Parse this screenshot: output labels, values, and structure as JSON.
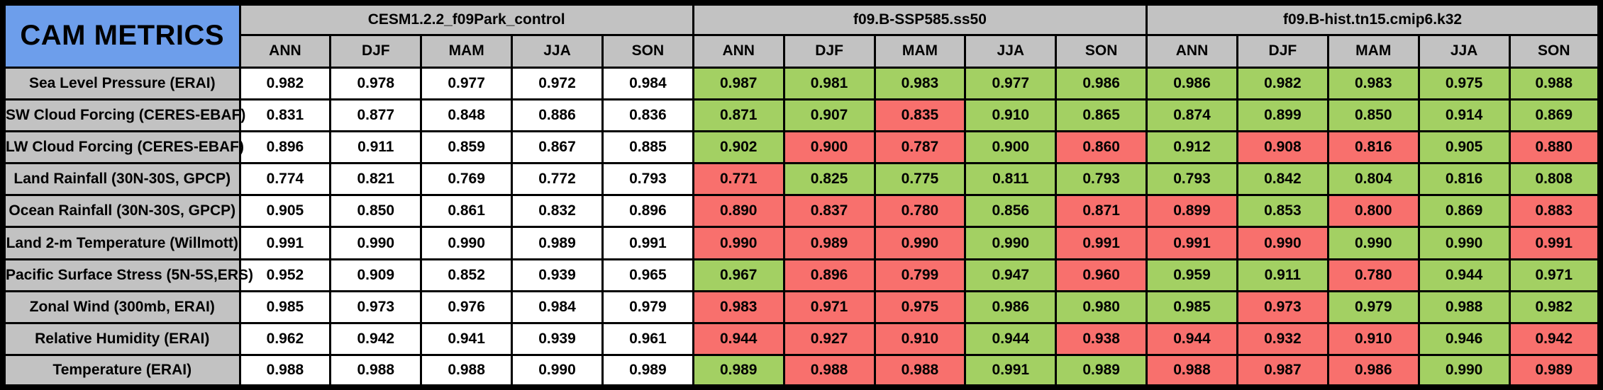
{
  "title": "CAM METRICS",
  "colors": {
    "title_background": "#6D9EEB",
    "header_background": "#C2C2C2",
    "cell_white": "#FFFFFF",
    "cell_green": "#A3D063",
    "cell_red": "#F8706D",
    "border": "#000000"
  },
  "chart_data": {
    "type": "table",
    "title": "CAM METRICS",
    "column_groups": [
      "CESM1.2.2_f09Park_control",
      "f09.B-SSP585.ss50",
      "f09.B-hist.tn15.cmip6.k32"
    ],
    "seasons": [
      "ANN",
      "DJF",
      "MAM",
      "JJA",
      "SON"
    ],
    "color_key": {
      "w": "white",
      "g": "green",
      "r": "red"
    },
    "rows": [
      {
        "label": "Sea Level Pressure (ERAI)",
        "groups": [
          {
            "values": [
              "0.982",
              "0.978",
              "0.977",
              "0.972",
              "0.984"
            ],
            "colors": [
              "w",
              "w",
              "w",
              "w",
              "w"
            ]
          },
          {
            "values": [
              "0.987",
              "0.981",
              "0.983",
              "0.977",
              "0.986"
            ],
            "colors": [
              "g",
              "g",
              "g",
              "g",
              "g"
            ]
          },
          {
            "values": [
              "0.986",
              "0.982",
              "0.983",
              "0.975",
              "0.988"
            ],
            "colors": [
              "g",
              "g",
              "g",
              "g",
              "g"
            ]
          }
        ]
      },
      {
        "label": "SW Cloud Forcing (CERES-EBAF)",
        "groups": [
          {
            "values": [
              "0.831",
              "0.877",
              "0.848",
              "0.886",
              "0.836"
            ],
            "colors": [
              "w",
              "w",
              "w",
              "w",
              "w"
            ]
          },
          {
            "values": [
              "0.871",
              "0.907",
              "0.835",
              "0.910",
              "0.865"
            ],
            "colors": [
              "g",
              "g",
              "r",
              "g",
              "g"
            ]
          },
          {
            "values": [
              "0.874",
              "0.899",
              "0.850",
              "0.914",
              "0.869"
            ],
            "colors": [
              "g",
              "g",
              "g",
              "g",
              "g"
            ]
          }
        ]
      },
      {
        "label": "LW Cloud Forcing (CERES-EBAF)",
        "groups": [
          {
            "values": [
              "0.896",
              "0.911",
              "0.859",
              "0.867",
              "0.885"
            ],
            "colors": [
              "w",
              "w",
              "w",
              "w",
              "w"
            ]
          },
          {
            "values": [
              "0.902",
              "0.900",
              "0.787",
              "0.900",
              "0.860"
            ],
            "colors": [
              "g",
              "r",
              "r",
              "g",
              "r"
            ]
          },
          {
            "values": [
              "0.912",
              "0.908",
              "0.816",
              "0.905",
              "0.880"
            ],
            "colors": [
              "g",
              "r",
              "r",
              "g",
              "r"
            ]
          }
        ]
      },
      {
        "label": "Land Rainfall (30N-30S, GPCP)",
        "groups": [
          {
            "values": [
              "0.774",
              "0.821",
              "0.769",
              "0.772",
              "0.793"
            ],
            "colors": [
              "w",
              "w",
              "w",
              "w",
              "w"
            ]
          },
          {
            "values": [
              "0.771",
              "0.825",
              "0.775",
              "0.811",
              "0.793"
            ],
            "colors": [
              "r",
              "g",
              "g",
              "g",
              "g"
            ]
          },
          {
            "values": [
              "0.793",
              "0.842",
              "0.804",
              "0.816",
              "0.808"
            ],
            "colors": [
              "g",
              "g",
              "g",
              "g",
              "g"
            ]
          }
        ]
      },
      {
        "label": "Ocean Rainfall (30N-30S, GPCP)",
        "groups": [
          {
            "values": [
              "0.905",
              "0.850",
              "0.861",
              "0.832",
              "0.896"
            ],
            "colors": [
              "w",
              "w",
              "w",
              "w",
              "w"
            ]
          },
          {
            "values": [
              "0.890",
              "0.837",
              "0.780",
              "0.856",
              "0.871"
            ],
            "colors": [
              "r",
              "r",
              "r",
              "g",
              "r"
            ]
          },
          {
            "values": [
              "0.899",
              "0.853",
              "0.800",
              "0.869",
              "0.883"
            ],
            "colors": [
              "r",
              "g",
              "r",
              "g",
              "r"
            ]
          }
        ]
      },
      {
        "label": "Land 2-m Temperature (Willmott)",
        "groups": [
          {
            "values": [
              "0.991",
              "0.990",
              "0.990",
              "0.989",
              "0.991"
            ],
            "colors": [
              "w",
              "w",
              "w",
              "w",
              "w"
            ]
          },
          {
            "values": [
              "0.990",
              "0.989",
              "0.990",
              "0.990",
              "0.991"
            ],
            "colors": [
              "r",
              "r",
              "r",
              "g",
              "r"
            ]
          },
          {
            "values": [
              "0.991",
              "0.990",
              "0.990",
              "0.990",
              "0.991"
            ],
            "colors": [
              "r",
              "r",
              "g",
              "g",
              "r"
            ]
          }
        ]
      },
      {
        "label": "Pacific Surface Stress (5N-5S,ERS)",
        "groups": [
          {
            "values": [
              "0.952",
              "0.909",
              "0.852",
              "0.939",
              "0.965"
            ],
            "colors": [
              "w",
              "w",
              "w",
              "w",
              "w"
            ]
          },
          {
            "values": [
              "0.967",
              "0.896",
              "0.799",
              "0.947",
              "0.960"
            ],
            "colors": [
              "g",
              "r",
              "r",
              "g",
              "r"
            ]
          },
          {
            "values": [
              "0.959",
              "0.911",
              "0.780",
              "0.944",
              "0.971"
            ],
            "colors": [
              "g",
              "g",
              "r",
              "g",
              "g"
            ]
          }
        ]
      },
      {
        "label": "Zonal Wind (300mb, ERAI)",
        "groups": [
          {
            "values": [
              "0.985",
              "0.973",
              "0.976",
              "0.984",
              "0.979"
            ],
            "colors": [
              "w",
              "w",
              "w",
              "w",
              "w"
            ]
          },
          {
            "values": [
              "0.983",
              "0.971",
              "0.975",
              "0.986",
              "0.980"
            ],
            "colors": [
              "r",
              "r",
              "r",
              "g",
              "g"
            ]
          },
          {
            "values": [
              "0.985",
              "0.973",
              "0.979",
              "0.988",
              "0.982"
            ],
            "colors": [
              "g",
              "r",
              "g",
              "g",
              "g"
            ]
          }
        ]
      },
      {
        "label": "Relative Humidity (ERAI)",
        "groups": [
          {
            "values": [
              "0.962",
              "0.942",
              "0.941",
              "0.939",
              "0.961"
            ],
            "colors": [
              "w",
              "w",
              "w",
              "w",
              "w"
            ]
          },
          {
            "values": [
              "0.944",
              "0.927",
              "0.910",
              "0.944",
              "0.938"
            ],
            "colors": [
              "r",
              "r",
              "r",
              "g",
              "r"
            ]
          },
          {
            "values": [
              "0.944",
              "0.932",
              "0.910",
              "0.946",
              "0.942"
            ],
            "colors": [
              "r",
              "r",
              "r",
              "g",
              "r"
            ]
          }
        ]
      },
      {
        "label": "Temperature (ERAI)",
        "groups": [
          {
            "values": [
              "0.988",
              "0.988",
              "0.988",
              "0.990",
              "0.989"
            ],
            "colors": [
              "w",
              "w",
              "w",
              "w",
              "w"
            ]
          },
          {
            "values": [
              "0.989",
              "0.988",
              "0.988",
              "0.991",
              "0.989"
            ],
            "colors": [
              "g",
              "r",
              "r",
              "g",
              "g"
            ]
          },
          {
            "values": [
              "0.988",
              "0.987",
              "0.986",
              "0.990",
              "0.989"
            ],
            "colors": [
              "r",
              "r",
              "r",
              "g",
              "r"
            ]
          }
        ]
      }
    ]
  }
}
